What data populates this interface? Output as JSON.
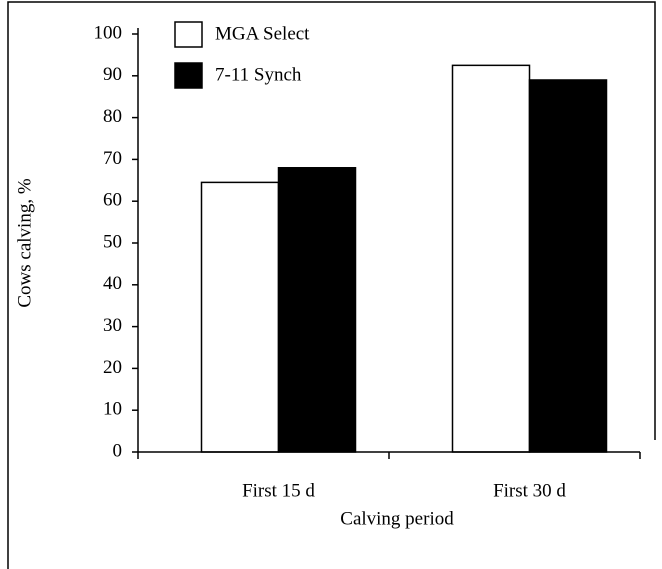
{
  "chart_data": {
    "type": "bar",
    "xlabel": "Calving period",
    "ylabel": "Cows calving, %",
    "categories": [
      "First 15 d",
      "First 30 d"
    ],
    "series": [
      {
        "name": "MGA Select",
        "color": "#ffffff",
        "values": [
          64.5,
          92.5
        ]
      },
      {
        "name": "7-11 Synch",
        "color": "#000000",
        "values": [
          68,
          89
        ]
      }
    ],
    "ylim": [
      0,
      100
    ],
    "yticks": [
      0,
      10,
      20,
      30,
      40,
      50,
      60,
      70,
      80,
      90,
      100
    ],
    "legend": "upper left"
  }
}
